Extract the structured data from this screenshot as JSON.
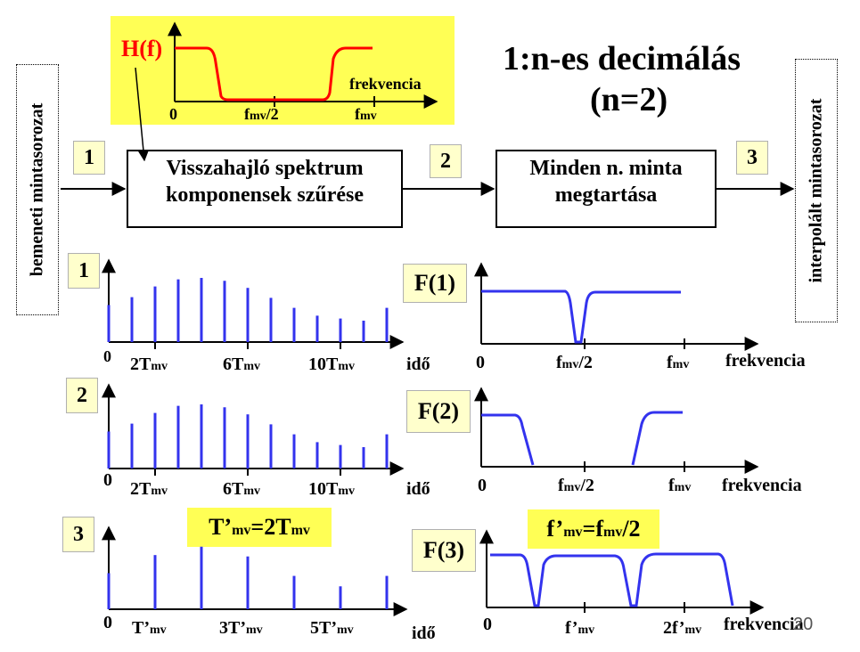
{
  "title": {
    "line1": "1:n-es decimálás",
    "line2": "(n=2)"
  },
  "side_labels": {
    "input": "bemeneti mintasorozat",
    "output": "interpolált mintasorozat"
  },
  "blocks": {
    "filter": {
      "line1": "Visszahajló spektrum",
      "line2": "komponensek szűrése"
    },
    "keep": {
      "line1": "Minden n. minta",
      "line2": "megtartása"
    }
  },
  "stage_numbers": {
    "n1": "1",
    "n2": "2",
    "n3": "3"
  },
  "inset": {
    "hf_label": "H(f)",
    "axis_label": "frekvencia",
    "ticks": {
      "zero": "0",
      "half_main": "f",
      "half_sub": "mv",
      "half_tail": "/2",
      "full_main": "f",
      "full_sub": "mv"
    }
  },
  "rows": [
    {
      "number": "1",
      "spectrum_label": "F(1)",
      "time_ticks": [
        {
          "main": "2T",
          "sub": "mv"
        },
        {
          "main": "6T",
          "sub": "mv"
        },
        {
          "main": "10T",
          "sub": "mv"
        }
      ],
      "freq_ticks": [
        {
          "main": "f",
          "sub": "mv",
          "tail": "/2"
        },
        {
          "main": "f",
          "sub": "mv",
          "tail": ""
        }
      ],
      "zero": "0",
      "time_axis": "idő",
      "freq_axis": "frekvencia"
    },
    {
      "number": "2",
      "spectrum_label": "F(2)",
      "time_ticks": [
        {
          "main": "2T",
          "sub": "mv"
        },
        {
          "main": "6T",
          "sub": "mv"
        },
        {
          "main": "10T",
          "sub": "mv"
        }
      ],
      "freq_ticks": [
        {
          "main": "f",
          "sub": "mv",
          "tail": "/2"
        },
        {
          "main": "f",
          "sub": "mv",
          "tail": ""
        }
      ],
      "zero": "0",
      "time_axis": "idő",
      "freq_axis": "frekvencia"
    },
    {
      "number": "3",
      "spectrum_label": "F(3)",
      "time_ticks": [
        {
          "main": "T’",
          "sub": "mv"
        },
        {
          "main": "3T’",
          "sub": "mv"
        },
        {
          "main": "5T’",
          "sub": "mv"
        }
      ],
      "freq_ticks": [
        {
          "main": "f’",
          "sub": "mv",
          "tail": ""
        },
        {
          "main": "2f’",
          "sub": "mv",
          "tail": ""
        }
      ],
      "zero": "0",
      "time_axis": "idő",
      "freq_axis": "frekvencia"
    }
  ],
  "formulas": {
    "t": {
      "a": "T’",
      "a_sub": "mv",
      "b": "=2T",
      "b_sub": "mv"
    },
    "f": {
      "a": "f’",
      "a_sub": "mv",
      "b": "=f",
      "b_sub": "mv",
      "c": "/2"
    }
  },
  "page_number": "20",
  "samples": {
    "row1": [
      0.52,
      0.63,
      0.78,
      0.88,
      0.9,
      0.86,
      0.76,
      0.62,
      0.48,
      0.37,
      0.33,
      0.3,
      0.48
    ],
    "row2": [
      0.52,
      0.63,
      0.78,
      0.88,
      0.9,
      0.86,
      0.76,
      0.62,
      0.48,
      0.37,
      0.33,
      0.3,
      0.48
    ],
    "row3": [
      0.52,
      0.78,
      0.9,
      0.76,
      0.48,
      0.33,
      0.48
    ]
  },
  "colors": {
    "inset_bg": "#ffff55",
    "hf_curve": "#ff0000",
    "signal": "#3333ee",
    "label_bg": "#ffffcc"
  }
}
